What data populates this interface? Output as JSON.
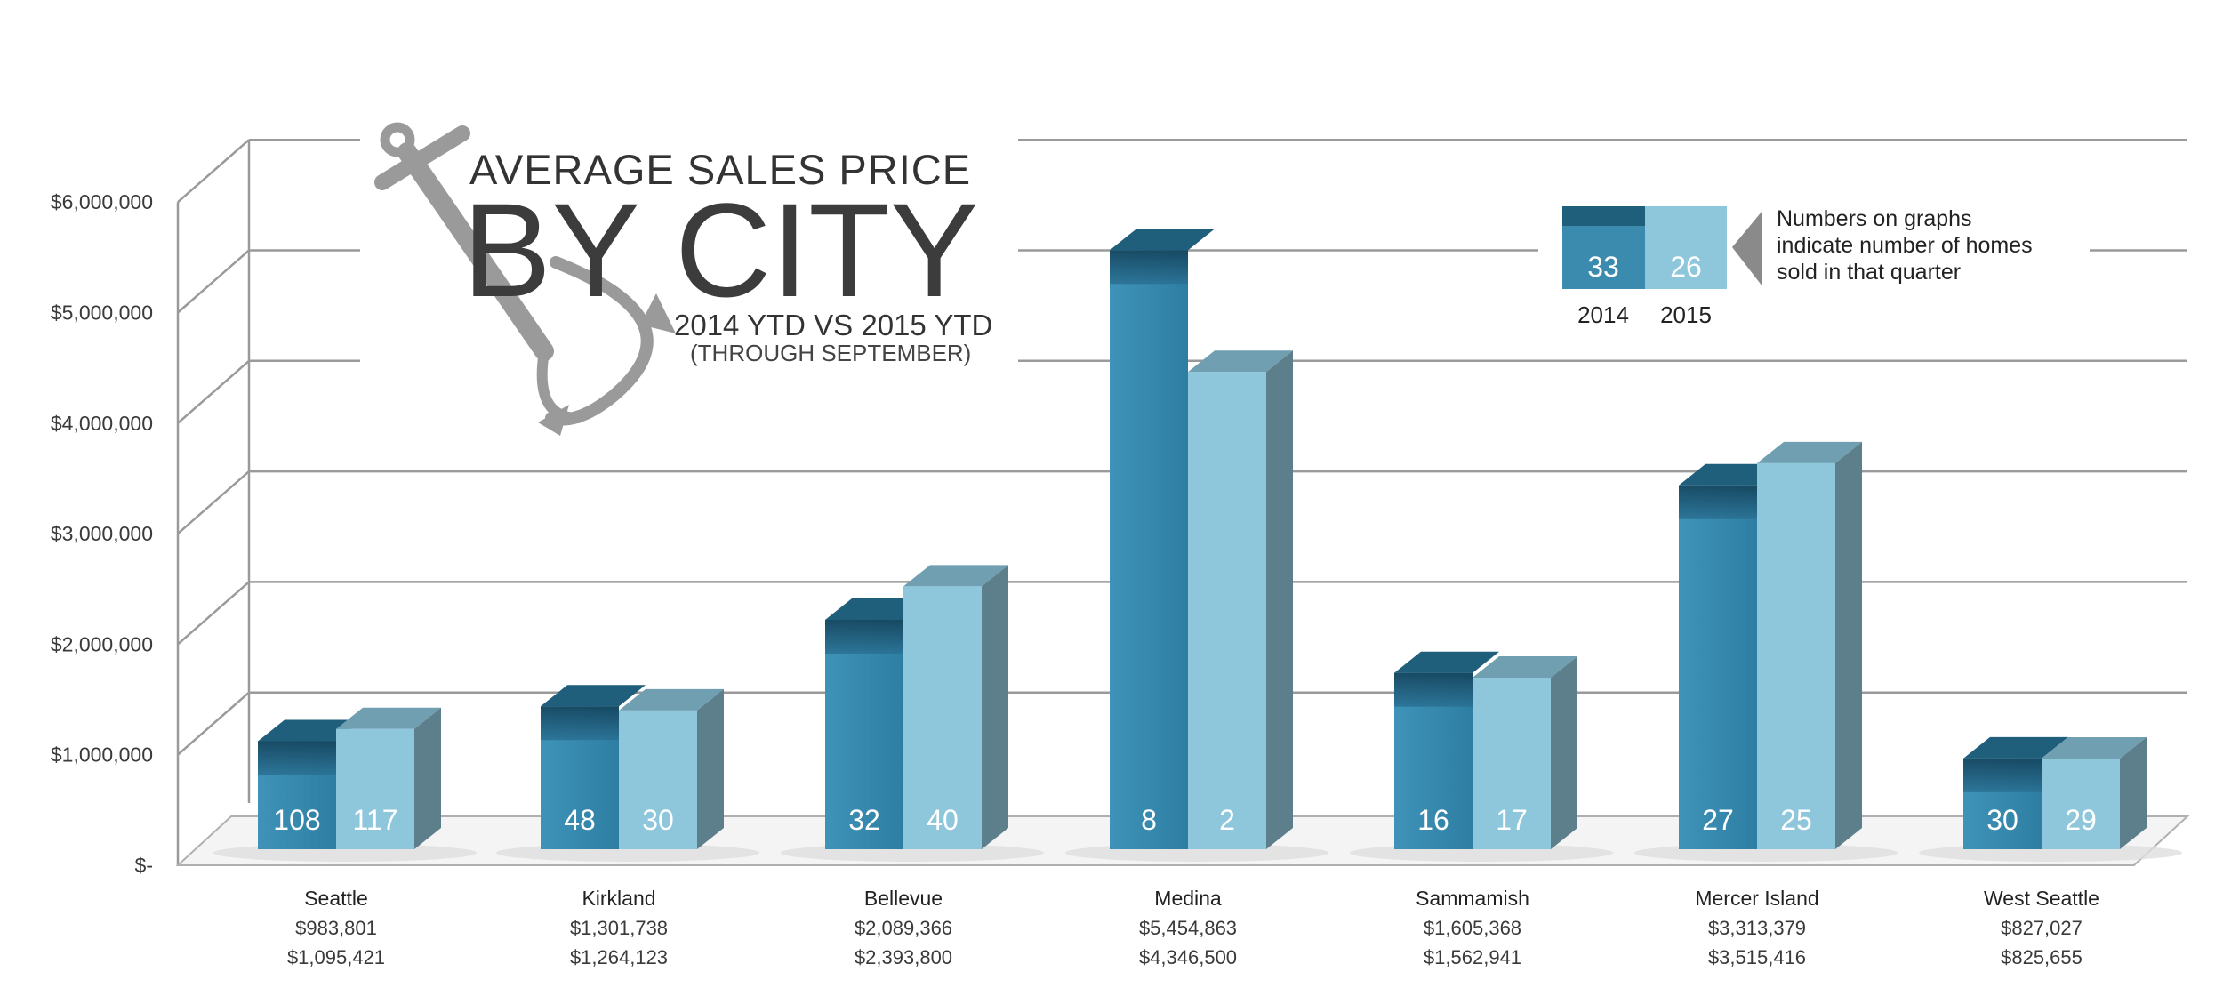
{
  "header": {
    "title_line1": "AVERAGE SALES PRICE",
    "title_line2": "BY CITY",
    "subtitle": "2014 YTD VS 2015 YTD",
    "subtitle_note": "(THROUGH SEPTEMBER)"
  },
  "legend": {
    "year_2014": "2014",
    "year_2015": "2015",
    "sample_2014": "33",
    "sample_2015": "26",
    "note_line1": "Numbers on graphs",
    "note_line2": "indicate number of homes",
    "note_line3": "sold in that quarter"
  },
  "colors": {
    "series_2014": "#3a8bae",
    "series_2014_dark": "#1f5f7c",
    "series_2015": "#8ec6dc",
    "series_2015_side": "#5d7f8b",
    "grid": "#9a9a9a",
    "anchor": "#9a9a9a"
  },
  "icons": {
    "logo": "anchor-icon",
    "pointer": "triangle-left-icon"
  },
  "chart_data": {
    "type": "bar",
    "categories": [
      "Seattle",
      "Kirkland",
      "Bellevue",
      "Medina",
      "Sammamish",
      "Mercer Island",
      "West Seattle"
    ],
    "series": [
      {
        "name": "2014",
        "values": [
          983801,
          1301738,
          2089366,
          5454863,
          1605368,
          3313379,
          827027
        ],
        "labels": [
          "$983,801",
          "$1,301,738",
          "$2,089,366",
          "$5,454,863",
          "$1,605,368",
          "$3,313,379",
          "$827,027"
        ],
        "counts": [
          "108",
          "48",
          "32",
          "8",
          "16",
          "27",
          "30"
        ]
      },
      {
        "name": "2015",
        "values": [
          1095421,
          1264123,
          2393800,
          4346500,
          1562941,
          3515416,
          825655
        ],
        "labels": [
          "$1,095,421",
          "$1,264,123",
          "$2,393,800",
          "$4,346,500",
          "$1,562,941",
          "$3,515,416",
          "$825,655"
        ],
        "counts": [
          "117",
          "30",
          "40",
          "2",
          "17",
          "25",
          "29"
        ]
      }
    ],
    "y_ticks": [
      {
        "value": 0,
        "label": "$-"
      },
      {
        "value": 1000000,
        "label": "$1,000,000"
      },
      {
        "value": 2000000,
        "label": "$2,000,000"
      },
      {
        "value": 3000000,
        "label": "$3,000,000"
      },
      {
        "value": 4000000,
        "label": "$4,000,000"
      },
      {
        "value": 5000000,
        "label": "$5,000,000"
      },
      {
        "value": 6000000,
        "label": "$6,000,000"
      }
    ],
    "ylim": [
      0,
      6000000
    ],
    "grid": true,
    "legend_position": "top-right"
  }
}
